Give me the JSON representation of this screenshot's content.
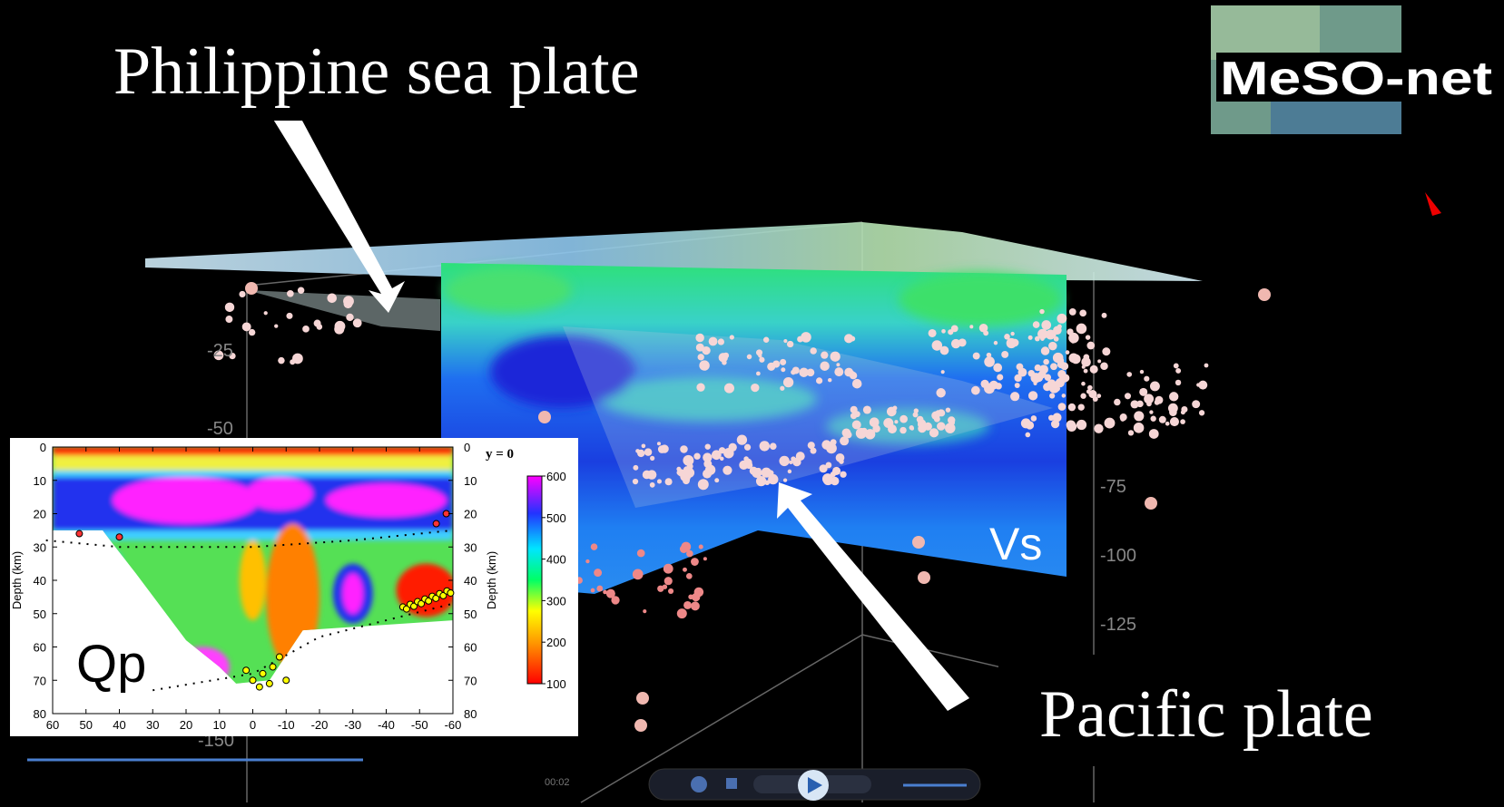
{
  "labels": {
    "top": "Philippine sea plate",
    "bottom": "Pacific plate",
    "slice": "Vs",
    "logo": "MeSO-net"
  },
  "scene": {
    "depth_ticks": [
      -25,
      -50,
      -75,
      -100,
      -125,
      -150
    ],
    "time": "00:02"
  },
  "inset": {
    "label": "Qp",
    "title": "y = 0",
    "ylabel": "Depth (km)",
    "xlim": [
      60,
      -60
    ],
    "xticks": [
      60,
      50,
      40,
      30,
      20,
      10,
      0,
      -10,
      -20,
      -30,
      -40,
      -50,
      -60
    ],
    "ylim": [
      0,
      80
    ],
    "yticks": [
      0,
      10,
      20,
      30,
      40,
      50,
      60,
      70,
      80
    ],
    "colorbar": {
      "lim": [
        100,
        600
      ],
      "ticks": [
        100,
        200,
        300,
        400,
        500,
        600
      ]
    }
  }
}
